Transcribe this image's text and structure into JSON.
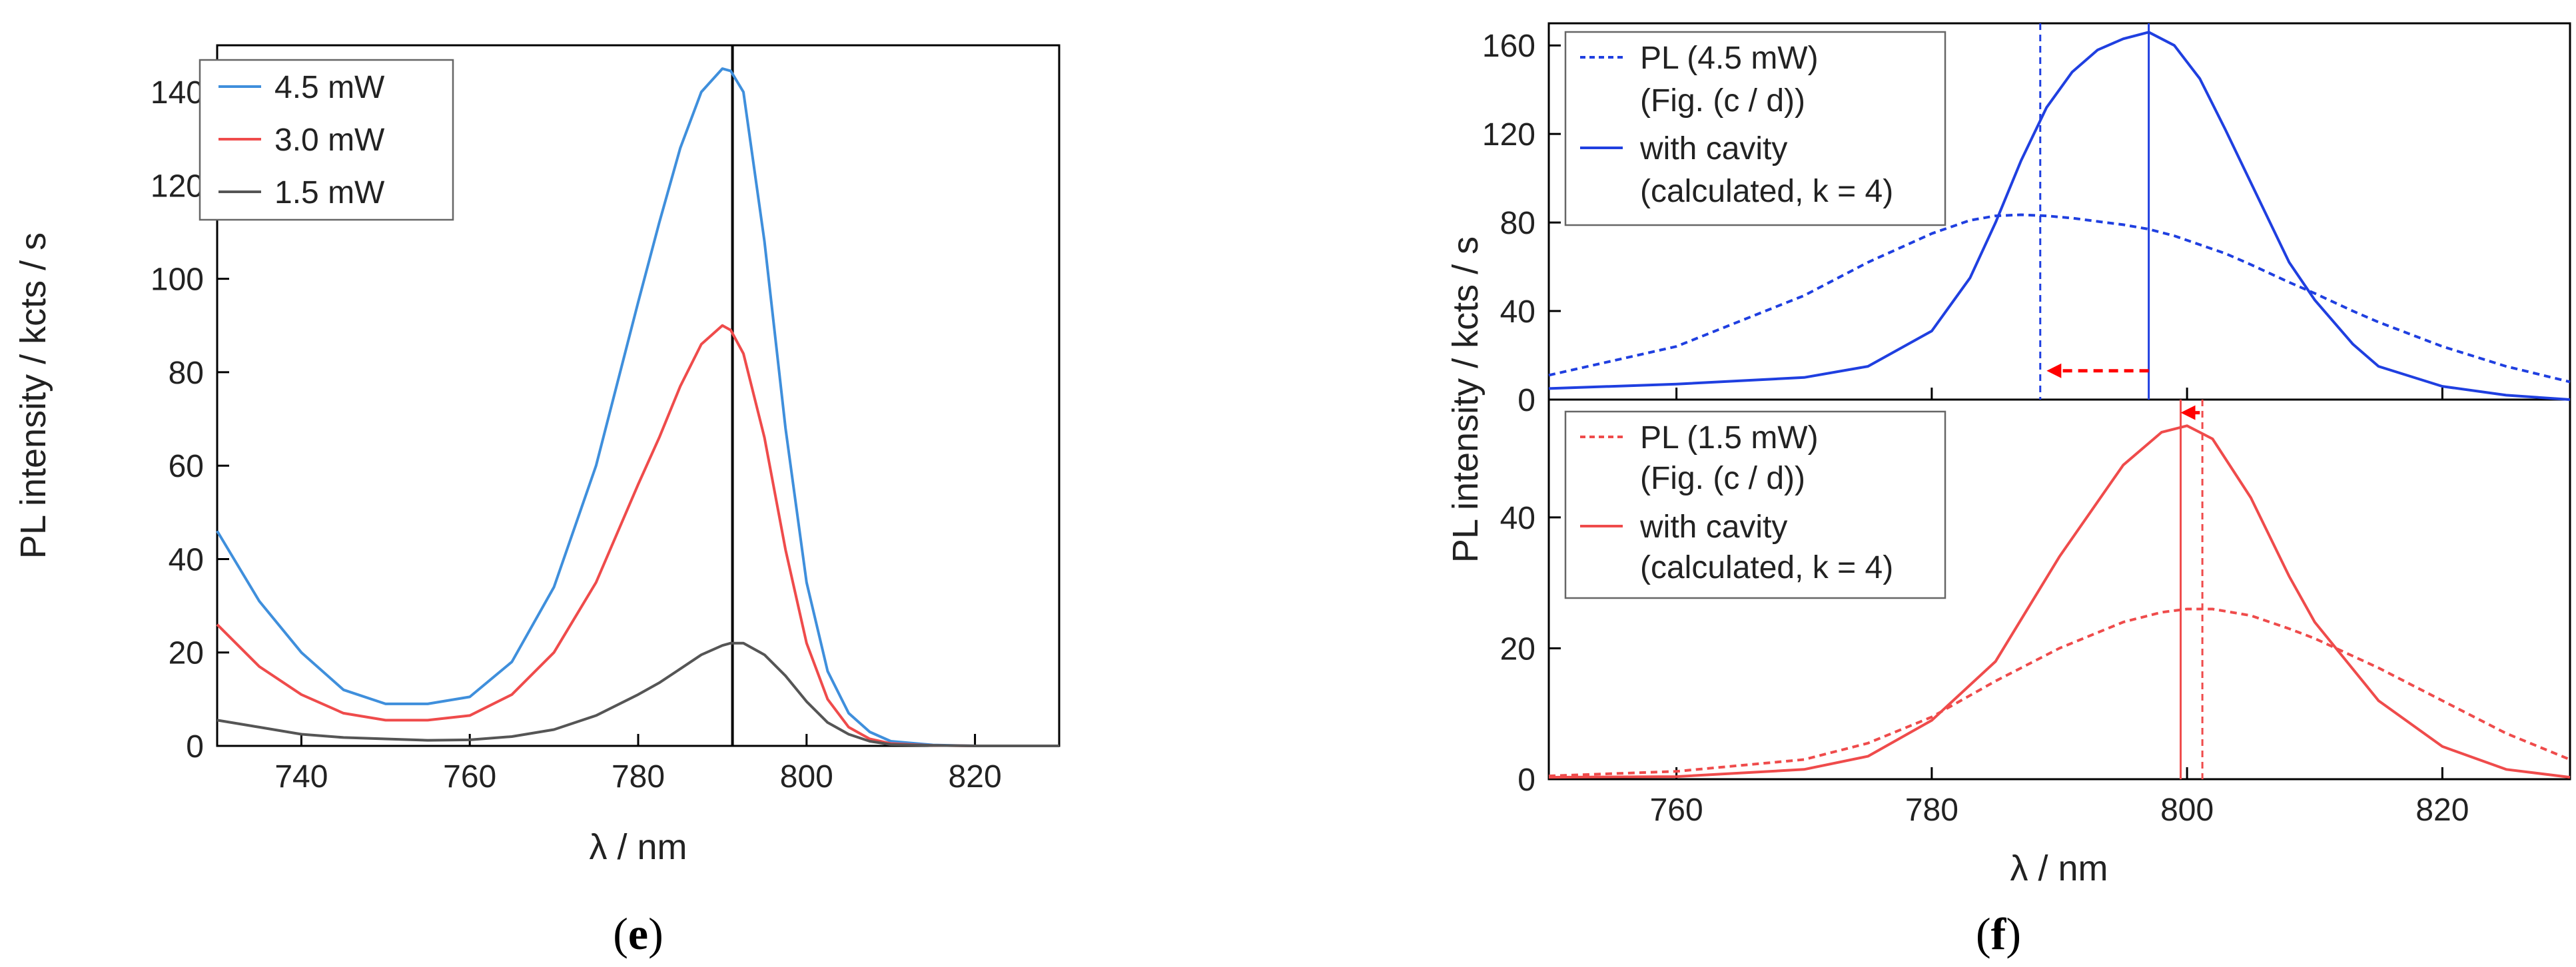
{
  "chart_data": [
    {
      "panel": "e",
      "type": "line",
      "panel_label": {
        "open": "(",
        "letter": "e",
        "close": ")"
      },
      "xlabel": "λ / nm",
      "ylabel": "PL intensity / kcts / s",
      "xlim": [
        730,
        830
      ],
      "ylim": [
        0,
        150
      ],
      "xticks": [
        740,
        760,
        780,
        800,
        820
      ],
      "yticks": [
        0,
        20,
        40,
        60,
        80,
        100,
        120,
        140
      ],
      "vline": {
        "x": 791.2,
        "color": "#000000"
      },
      "legend_position": "top-left",
      "x": [
        730,
        735,
        740,
        745,
        750,
        755,
        760,
        765,
        770,
        775,
        780,
        782.5,
        785,
        787.5,
        790,
        791,
        792.5,
        795,
        797.5,
        800,
        802.5,
        805,
        807.5,
        810,
        815,
        820,
        830
      ],
      "series": [
        {
          "name": "4.5 mW",
          "color": "#3f8fdc",
          "values": [
            46,
            31,
            20,
            12,
            9,
            9,
            10.5,
            18,
            34,
            60,
            95,
            112,
            128,
            140,
            145,
            144.5,
            140,
            108,
            68,
            35,
            16,
            7,
            3,
            1,
            0.2,
            0,
            0
          ]
        },
        {
          "name": "3.0 mW",
          "color": "#ef4b4b",
          "values": [
            26,
            17,
            11,
            7,
            5.5,
            5.5,
            6.5,
            11,
            20,
            35,
            56,
            66,
            77,
            86,
            90,
            89,
            84,
            66,
            42,
            22,
            10,
            4,
            1.5,
            0.5,
            0.1,
            0,
            0
          ]
        },
        {
          "name": "1.5 mW",
          "color": "#555555",
          "values": [
            5.5,
            4,
            2.5,
            1.8,
            1.5,
            1.2,
            1.3,
            2,
            3.5,
            6.5,
            11,
            13.5,
            16.5,
            19.5,
            21.5,
            22,
            22,
            19.5,
            15,
            9.5,
            5,
            2.5,
            1,
            0.3,
            0.1,
            0,
            0
          ]
        }
      ]
    },
    {
      "panel": "f",
      "type": "line",
      "panel_label": {
        "open": "(",
        "letter": "f",
        "close": ")"
      },
      "xlabel": "λ / nm",
      "xlim": [
        750,
        830
      ],
      "xticks": [
        760,
        780,
        800,
        820
      ],
      "subplots": [
        {
          "position": "top",
          "ylabel": "PL intensity / kcts / s",
          "ylim": [
            0,
            170
          ],
          "yticks": [
            0,
            40,
            80,
            120,
            160
          ],
          "color": "#1f3fe0",
          "vlines": [
            {
              "x": 788.5,
              "style": "dashed"
            },
            {
              "x": 797,
              "style": "solid"
            }
          ],
          "arrow": {
            "from": 797,
            "to": 789,
            "y": 13,
            "color": "#ff0000"
          },
          "x": [
            750,
            760,
            770,
            775,
            780,
            783,
            785,
            787,
            789,
            791,
            793,
            795,
            797,
            799,
            801,
            803,
            805,
            808,
            810,
            813,
            815,
            820,
            825,
            830
          ],
          "series": [
            {
              "name": "PL (4.5 mW)",
              "name_line2": "(Fig. (c / d))",
              "style": "dashed",
              "values": [
                11,
                24,
                47,
                62,
                75,
                81,
                83,
                83.5,
                83,
                82,
                80.5,
                79,
                77,
                74,
                70,
                66,
                61,
                53,
                48,
                40,
                35,
                24,
                15,
                8
              ]
            },
            {
              "name": "with cavity",
              "name_line2": "(calculated, k = 4)",
              "style": "solid",
              "values": [
                5,
                7,
                10,
                15,
                31,
                55,
                80,
                108,
                132,
                148,
                158,
                163,
                166,
                160,
                145,
                122,
                98,
                62,
                45,
                25,
                15,
                6,
                2,
                0
              ]
            }
          ]
        },
        {
          "position": "bottom",
          "ylim": [
            0,
            58
          ],
          "yticks": [
            0,
            20,
            40
          ],
          "color": "#ef4b4b",
          "vlines": [
            {
              "x": 799.5,
              "style": "solid"
            },
            {
              "x": 801.2,
              "style": "dashed"
            }
          ],
          "arrow": {
            "from": 801,
            "to": 799.5,
            "y": 56,
            "color": "#ff0000"
          },
          "x": [
            750,
            760,
            770,
            775,
            780,
            785,
            790,
            795,
            798,
            800,
            802,
            805,
            808,
            810,
            815,
            820,
            825,
            830
          ],
          "series": [
            {
              "name": "PL (1.5 mW)",
              "name_line2": "(Fig. (c / d))",
              "style": "dashed",
              "values": [
                0.5,
                1.2,
                3,
                5.5,
                9.5,
                15,
                20,
                24,
                25.5,
                26,
                26,
                25,
                23,
                21.5,
                17,
                12,
                7,
                3
              ]
            },
            {
              "name": "with cavity",
              "name_line2": "(calculated, k = 4)",
              "style": "solid",
              "values": [
                0.3,
                0.4,
                1.5,
                3.5,
                9,
                18,
                34,
                48,
                53,
                54,
                52,
                43,
                31,
                24,
                12,
                5,
                1.5,
                0.3
              ]
            }
          ]
        }
      ]
    }
  ]
}
